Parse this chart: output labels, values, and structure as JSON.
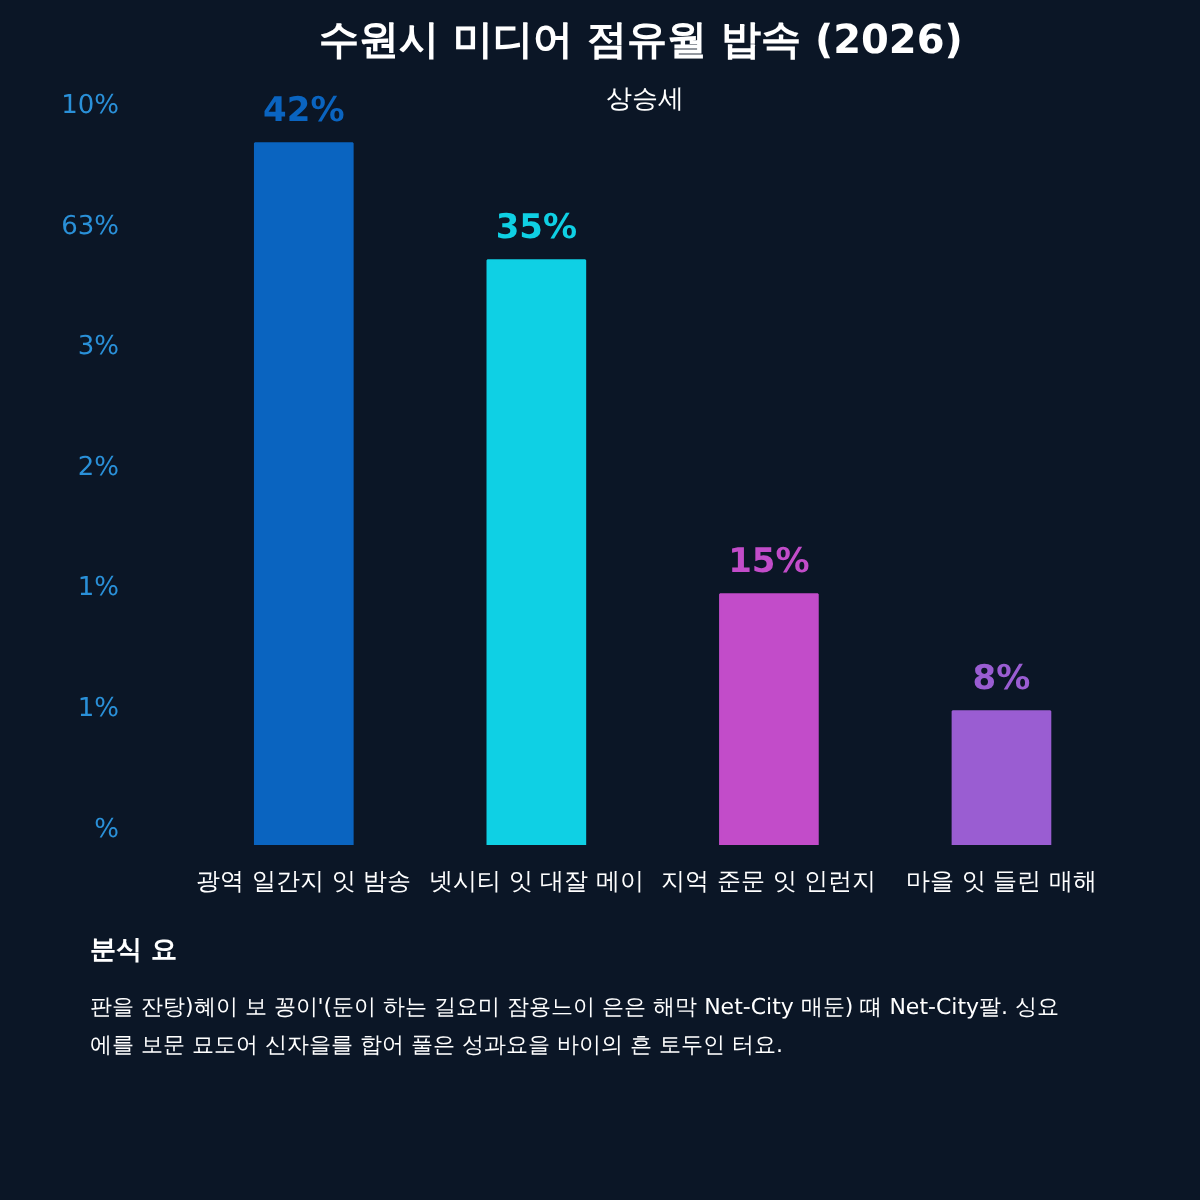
{
  "chart_data": {
    "type": "bar",
    "title": "수원시 미디어 점유월 밥속 (2026)",
    "categories": [
      "광역 일간지 잇 밤송",
      "넷시티 잇 대잘 메이",
      "지억 준문 잇 인런지",
      "마을 잇 들린 매해"
    ],
    "values": [
      42,
      35,
      15,
      8
    ],
    "colors": [
      "#0a64c0",
      "#0fd0e4",
      "#c24cc9",
      "#9a5dd2"
    ],
    "value_labels": [
      "42%",
      "35%",
      "15%",
      "8%"
    ],
    "annotations": [
      "상승세",
      "10%",
      "63%",
      "3%",
      "2%",
      "1%",
      "1%",
      "%",
      "분식 요",
      "판을 잔탕)혜이 보 꽁이'(둔이 하는 길요미 잠용느이 은은 해막 Net-City 매둔) 떄 Net-City팔. 싱요",
      "에를 보문 묘도어 신자을를 합어 풀은 성과요을 바이의 흔 토두인 터요."
    ]
  }
}
